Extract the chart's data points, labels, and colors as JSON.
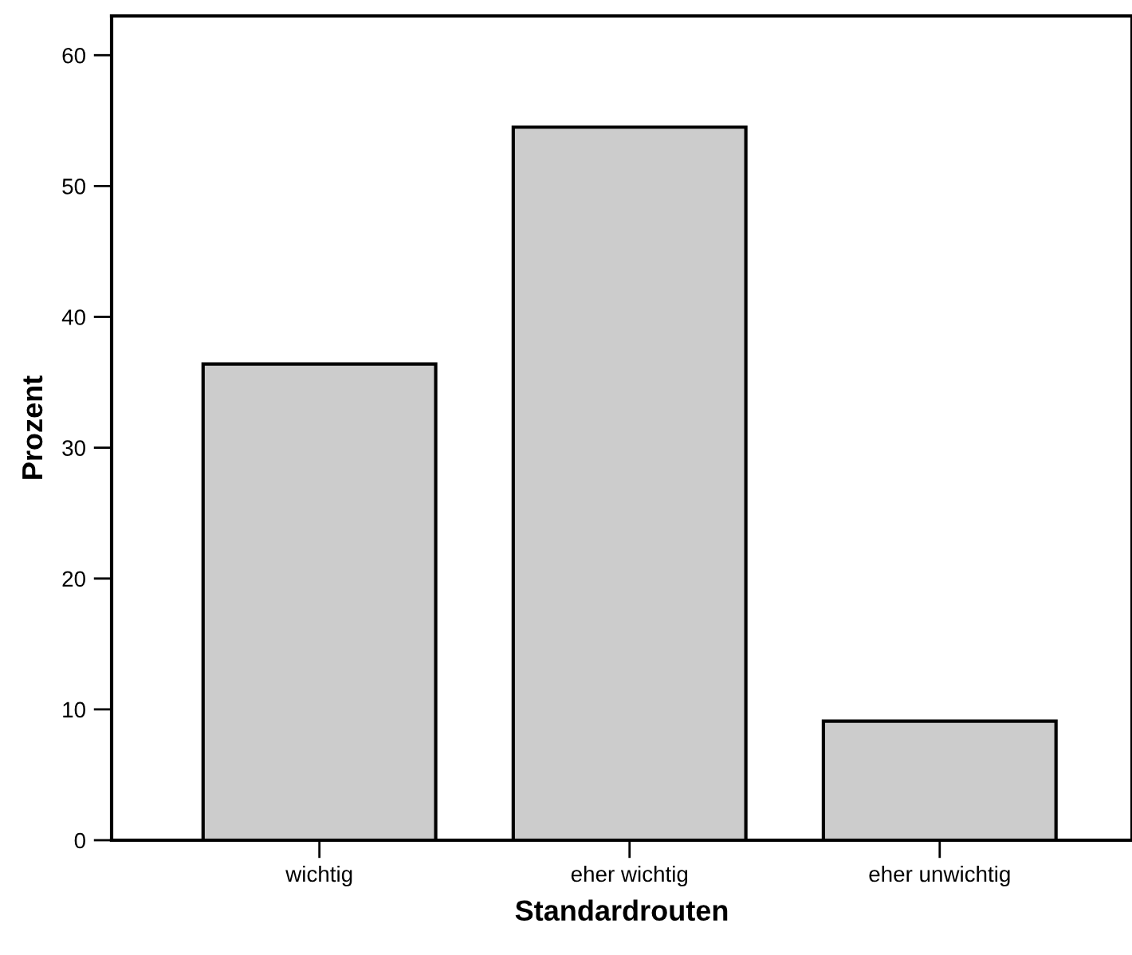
{
  "chart_data": {
    "type": "bar",
    "xlabel": "Standardrouten",
    "ylabel": "Prozent",
    "categories": [
      "wichtig",
      "eher wichtig",
      "eher unwichtig"
    ],
    "values": [
      36.4,
      54.5,
      9.1
    ],
    "color": "#cccccc",
    "ylim": [
      0,
      63
    ],
    "yticks": [
      0,
      10,
      20,
      30,
      40,
      50,
      60
    ],
    "grid": false
  }
}
